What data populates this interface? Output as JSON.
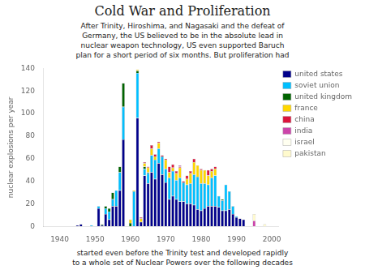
{
  "chart_data": {
    "type": "bar",
    "stacked": true,
    "title": "Cold War and Proliferation",
    "annotations": [
      "After Trinity, Hiroshima, and Nagasaki and the defeat of\nGermany, the US believed to be in the absolute lead in\nnuclear weapon technology, US even supported Baruch\nplan for a short period of six months. But proliferation had",
      "started even before the Trinity test and developed rapidly\nto a whole set of Nuclear Powers over the following decades"
    ],
    "y_label": "nuclear explosions per year",
    "x": [
      1945,
      1946,
      1947,
      1948,
      1949,
      1950,
      1951,
      1952,
      1953,
      1954,
      1955,
      1956,
      1957,
      1958,
      1959,
      1960,
      1961,
      1962,
      1963,
      1964,
      1965,
      1966,
      1967,
      1968,
      1969,
      1970,
      1971,
      1972,
      1973,
      1974,
      1975,
      1976,
      1977,
      1978,
      1979,
      1980,
      1981,
      1982,
      1983,
      1984,
      1985,
      1986,
      1987,
      1988,
      1989,
      1990,
      1991,
      1992,
      1993,
      1994,
      1995,
      1996,
      1997,
      1998,
      1999,
      2000
    ],
    "series": [
      {
        "name": "united states",
        "color": "#00008B",
        "values": [
          1,
          2,
          0,
          0,
          0,
          0,
          16,
          1,
          11,
          6,
          18,
          18,
          32,
          77,
          0,
          0,
          0,
          96,
          4,
          45,
          38,
          48,
          42,
          56,
          46,
          39,
          24,
          27,
          24,
          22,
          22,
          20,
          20,
          19,
          15,
          14,
          16,
          18,
          18,
          18,
          17,
          14,
          14,
          15,
          11,
          8,
          7,
          6,
          0,
          0,
          0,
          0,
          0,
          0,
          0,
          0
        ]
      },
      {
        "name": "soviet union",
        "color": "#00BFFF",
        "values": [
          0,
          0,
          0,
          0,
          1,
          0,
          2,
          0,
          5,
          7,
          6,
          14,
          16,
          29,
          0,
          0,
          31,
          40,
          0,
          6,
          9,
          15,
          17,
          13,
          16,
          12,
          19,
          22,
          17,
          21,
          17,
          17,
          18,
          27,
          29,
          24,
          22,
          19,
          25,
          27,
          10,
          9,
          23,
          16,
          7,
          1,
          0,
          0,
          0,
          0,
          0,
          0,
          0,
          0,
          0,
          0
        ]
      },
      {
        "name": "united kingdom",
        "color": "#006400",
        "values": [
          0,
          0,
          0,
          0,
          0,
          0,
          0,
          1,
          2,
          3,
          6,
          0,
          5,
          21,
          0,
          3,
          0,
          2,
          0,
          2,
          1,
          0,
          0,
          0,
          0,
          0,
          0,
          0,
          0,
          0,
          0,
          0,
          0,
          0,
          0,
          0,
          0,
          0,
          0,
          0,
          0,
          1,
          0,
          0,
          0,
          0,
          0,
          0,
          0,
          0,
          0,
          0,
          0,
          0,
          0,
          0
        ]
      },
      {
        "name": "france",
        "color": "#FFD700",
        "values": [
          0,
          0,
          0,
          0,
          0,
          0,
          0,
          0,
          0,
          0,
          0,
          0,
          0,
          0,
          0,
          3,
          1,
          1,
          3,
          3,
          4,
          6,
          3,
          5,
          0,
          8,
          5,
          3,
          6,
          9,
          0,
          5,
          9,
          11,
          10,
          12,
          12,
          8,
          6,
          6,
          0,
          0,
          0,
          0,
          0,
          0,
          0,
          0,
          0,
          0,
          0,
          0,
          0,
          0,
          0,
          0
        ]
      },
      {
        "name": "china",
        "color": "#DC143C",
        "values": [
          0,
          0,
          0,
          0,
          0,
          0,
          0,
          0,
          0,
          0,
          0,
          0,
          0,
          0,
          0,
          0,
          0,
          0,
          1,
          1,
          1,
          3,
          2,
          1,
          1,
          1,
          5,
          3,
          2,
          1,
          1,
          3,
          2,
          3,
          0,
          1,
          0,
          5,
          2,
          2,
          0,
          0,
          0,
          0,
          0,
          0,
          0,
          0,
          0,
          0,
          0,
          0,
          0,
          0,
          0,
          0
        ]
      },
      {
        "name": "india",
        "color": "#CC44AA",
        "values": [
          0,
          0,
          0,
          0,
          0,
          0,
          0,
          0,
          0,
          0,
          0,
          0,
          0,
          0,
          0,
          0,
          0,
          0,
          0,
          0,
          0,
          0,
          0,
          0,
          0,
          0,
          0,
          0,
          0,
          1,
          0,
          0,
          0,
          0,
          0,
          0,
          0,
          0,
          0,
          0,
          0,
          0,
          0,
          0,
          0,
          0,
          0,
          0,
          0,
          0,
          5,
          0,
          0,
          0,
          0,
          0
        ]
      },
      {
        "name": "israel",
        "color": "#FFFFF0",
        "values": [
          0,
          0,
          0,
          0,
          0,
          0,
          0,
          0,
          0,
          0,
          0,
          0,
          0,
          0,
          0,
          0,
          0,
          0,
          0,
          0,
          0,
          0,
          0,
          0,
          0,
          0,
          0,
          0,
          0,
          0,
          0,
          0,
          0,
          0,
          0,
          0,
          0,
          0,
          0,
          0,
          0,
          0,
          0,
          0,
          0,
          0,
          0,
          0,
          0,
          0,
          0,
          0,
          0,
          0,
          0,
          0
        ]
      },
      {
        "name": "pakistan",
        "color": "#FFFACD",
        "values": [
          0,
          0,
          0,
          0,
          0,
          0,
          0,
          0,
          0,
          0,
          0,
          0,
          0,
          0,
          0,
          0,
          0,
          0,
          0,
          0,
          0,
          0,
          0,
          0,
          0,
          0,
          0,
          0,
          0,
          0,
          0,
          0,
          0,
          0,
          0,
          0,
          0,
          0,
          0,
          0,
          0,
          0,
          0,
          0,
          0,
          0,
          0,
          0,
          0,
          0,
          6,
          0,
          0,
          2,
          0,
          0
        ]
      }
    ],
    "xlim": [
      1935.5,
      2002
    ],
    "xticks": [
      1940,
      1950,
      1960,
      1970,
      1980,
      1990,
      2000
    ],
    "ylim": [
      0,
      140
    ],
    "yticks": [
      0,
      20,
      40,
      60,
      80,
      100,
      120,
      140
    ],
    "grid": false,
    "legend": "right"
  }
}
